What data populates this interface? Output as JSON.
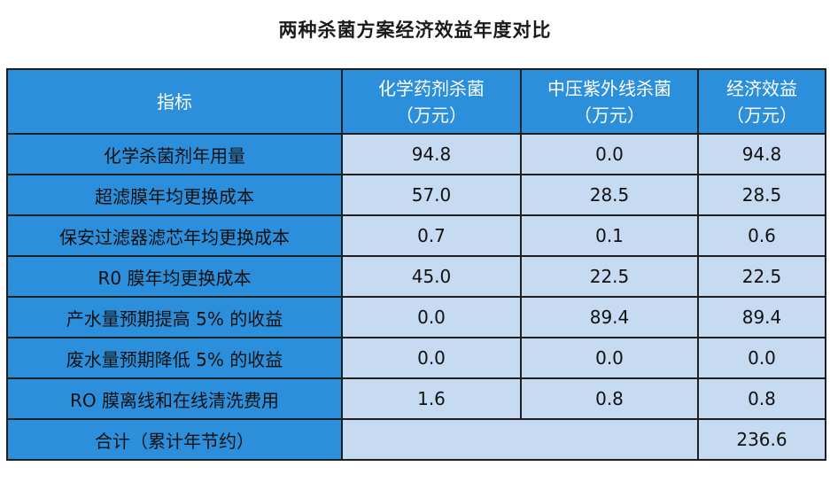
{
  "title": "两种杀菌方案经济效益年度对比",
  "table": {
    "headers": [
      {
        "line1": "指标",
        "line2": ""
      },
      {
        "line1": "化学药剂杀菌",
        "line2": "（万元）"
      },
      {
        "line1": "中压紫外线杀菌",
        "line2": "（万元）"
      },
      {
        "line1": "经济效益",
        "line2": "（万元）"
      }
    ],
    "rows": [
      {
        "label": "化学杀菌剂年用量",
        "chemical": "94.8",
        "uv": "0.0",
        "benefit": "94.8"
      },
      {
        "label": "超滤膜年均更换成本",
        "chemical": "57.0",
        "uv": "28.5",
        "benefit": "28.5"
      },
      {
        "label": "保安过滤器滤芯年均更换成本",
        "chemical": "0.7",
        "uv": "0.1",
        "benefit": "0.6"
      },
      {
        "label": "R0 膜年均更换成本",
        "chemical": "45.0",
        "uv": "22.5",
        "benefit": "22.5"
      },
      {
        "label": "产水量预期提高 5% 的收益",
        "chemical": "0.0",
        "uv": "89.4",
        "benefit": "89.4"
      },
      {
        "label": "废水量预期降低 5% 的收益",
        "chemical": "0.0",
        "uv": "0.0",
        "benefit": "0.0"
      },
      {
        "label": "RO 膜离线和在线清洗费用",
        "chemical": "1.6",
        "uv": "0.8",
        "benefit": "0.8"
      }
    ],
    "total": {
      "label": "合计（累计年节约）",
      "benefit": "236.6"
    }
  },
  "colors": {
    "header_bg": "#2c8fdc",
    "cell_bg": "#c6daf2",
    "border": "#1f1f1f"
  }
}
